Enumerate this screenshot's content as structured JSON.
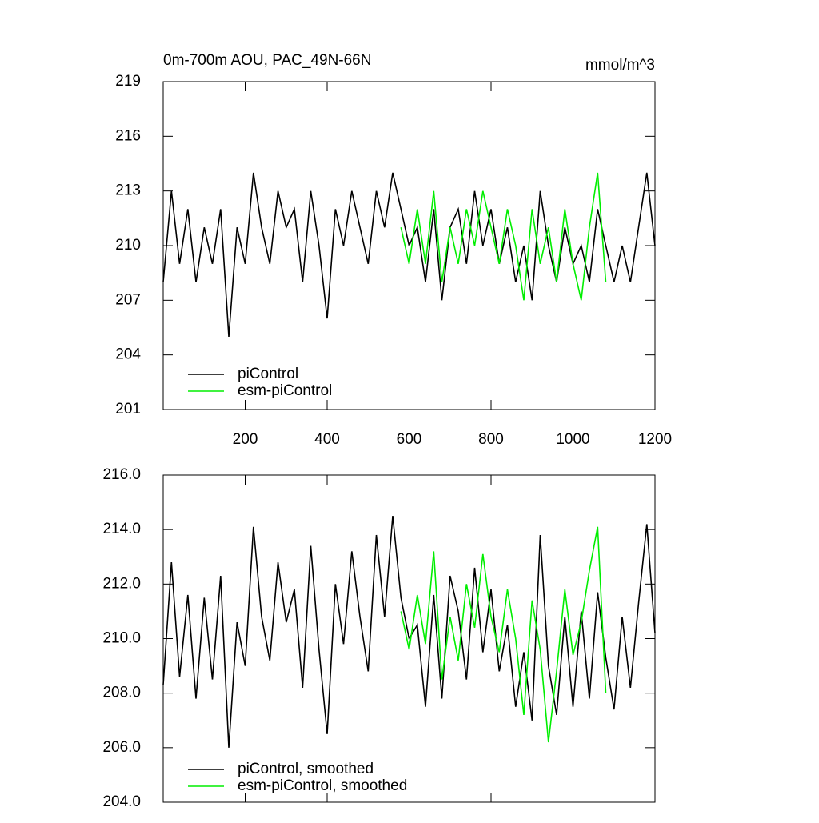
{
  "chart_data": [
    {
      "type": "line",
      "title": "0m-700m AOU, PAC_49N-66N",
      "units": "mmol/m^3",
      "xlim": [
        0,
        1200
      ],
      "xticks": [
        200,
        400,
        600,
        800,
        1000,
        1200
      ],
      "ylim": [
        201,
        219
      ],
      "yticks": [
        201,
        204,
        207,
        210,
        213,
        216,
        219
      ],
      "series": [
        {
          "name": "piControl",
          "color": "#000000",
          "x": [
            0,
            20,
            40,
            60,
            80,
            100,
            120,
            140,
            160,
            180,
            200,
            220,
            240,
            260,
            280,
            300,
            320,
            340,
            360,
            380,
            400,
            420,
            440,
            460,
            480,
            500,
            520,
            540,
            560,
            580,
            600,
            620,
            640,
            660,
            680,
            700,
            720,
            740,
            760,
            780,
            800,
            820,
            840,
            860,
            880,
            900,
            920,
            940,
            960,
            980,
            1000,
            1020,
            1040,
            1060,
            1080,
            1100,
            1120,
            1140,
            1160,
            1180,
            1200
          ],
          "values": [
            208,
            213,
            209,
            212,
            208,
            211,
            209,
            212,
            205,
            211,
            209,
            214,
            211,
            209,
            213,
            211,
            212,
            208,
            213,
            210,
            206,
            212,
            210,
            213,
            211,
            209,
            213,
            211,
            214,
            212,
            210,
            211,
            208,
            212,
            207,
            211,
            212,
            209,
            213,
            210,
            212,
            209,
            211,
            208,
            210,
            207,
            213,
            210,
            208,
            211,
            209,
            210,
            208,
            212,
            210,
            208,
            210,
            208,
            211,
            214,
            210
          ]
        },
        {
          "name": "esm-piControl",
          "color": "#00ee00",
          "x": [
            580,
            600,
            620,
            640,
            660,
            680,
            700,
            720,
            740,
            760,
            780,
            800,
            820,
            840,
            860,
            880,
            900,
            920,
            940,
            960,
            980,
            1000,
            1020,
            1040,
            1060,
            1080
          ],
          "values": [
            211,
            209,
            212,
            209,
            213,
            208,
            211,
            209,
            212,
            210,
            213,
            211,
            209,
            212,
            210,
            207,
            212,
            209,
            211,
            208,
            212,
            209,
            207,
            211,
            214,
            208
          ]
        }
      ]
    },
    {
      "type": "line",
      "xlim": [
        0,
        1200
      ],
      "xticks": [
        200,
        400,
        600,
        800,
        1000,
        1200
      ],
      "ylim": [
        204,
        216
      ],
      "yticks": [
        {
          "value": 204,
          "label": "204.0"
        },
        {
          "value": 206,
          "label": "206.0"
        },
        {
          "value": 208,
          "label": "208.0"
        },
        {
          "value": 210,
          "label": "210.0"
        },
        {
          "value": 212,
          "label": "212.0"
        },
        {
          "value": 214,
          "label": "214.0"
        },
        {
          "value": 216,
          "label": "216.0"
        }
      ],
      "series": [
        {
          "name": "piControl, smoothed",
          "color": "#000000",
          "x": [
            0,
            20,
            40,
            60,
            80,
            100,
            120,
            140,
            160,
            180,
            200,
            220,
            240,
            260,
            280,
            300,
            320,
            340,
            360,
            380,
            400,
            420,
            440,
            460,
            480,
            500,
            520,
            540,
            560,
            580,
            600,
            620,
            640,
            660,
            680,
            700,
            720,
            740,
            760,
            780,
            800,
            820,
            840,
            860,
            880,
            900,
            920,
            940,
            960,
            980,
            1000,
            1020,
            1040,
            1060,
            1080,
            1100,
            1120,
            1140,
            1160,
            1180,
            1200
          ],
          "values": [
            208.3,
            212.8,
            208.6,
            211.6,
            207.8,
            211.5,
            208.5,
            212.3,
            206.0,
            210.6,
            209.0,
            214.1,
            210.8,
            209.2,
            212.8,
            210.6,
            211.8,
            208.2,
            213.4,
            209.6,
            206.5,
            212.0,
            209.8,
            213.2,
            210.8,
            208.8,
            213.8,
            210.8,
            214.5,
            211.5,
            210.0,
            210.5,
            207.5,
            211.6,
            207.8,
            212.3,
            211.0,
            208.5,
            212.6,
            209.5,
            211.8,
            208.8,
            210.5,
            207.5,
            209.5,
            207.0,
            213.8,
            209.0,
            207.2,
            210.8,
            207.5,
            211.0,
            207.8,
            211.7,
            209.3,
            207.4,
            210.8,
            208.2,
            211.3,
            214.2,
            210.2
          ]
        },
        {
          "name": "esm-piControl, smoothed",
          "color": "#00ee00",
          "x": [
            580,
            600,
            620,
            640,
            660,
            680,
            700,
            720,
            740,
            760,
            780,
            800,
            820,
            840,
            860,
            880,
            900,
            920,
            940,
            960,
            980,
            1000,
            1020,
            1040,
            1060,
            1080
          ],
          "values": [
            211.0,
            209.6,
            211.6,
            209.8,
            213.2,
            208.5,
            210.8,
            209.2,
            212.0,
            210.4,
            213.1,
            210.8,
            209.5,
            211.8,
            210.0,
            207.2,
            211.4,
            209.6,
            206.2,
            208.8,
            211.8,
            209.4,
            210.6,
            212.5,
            214.1,
            208.0
          ]
        }
      ]
    }
  ]
}
